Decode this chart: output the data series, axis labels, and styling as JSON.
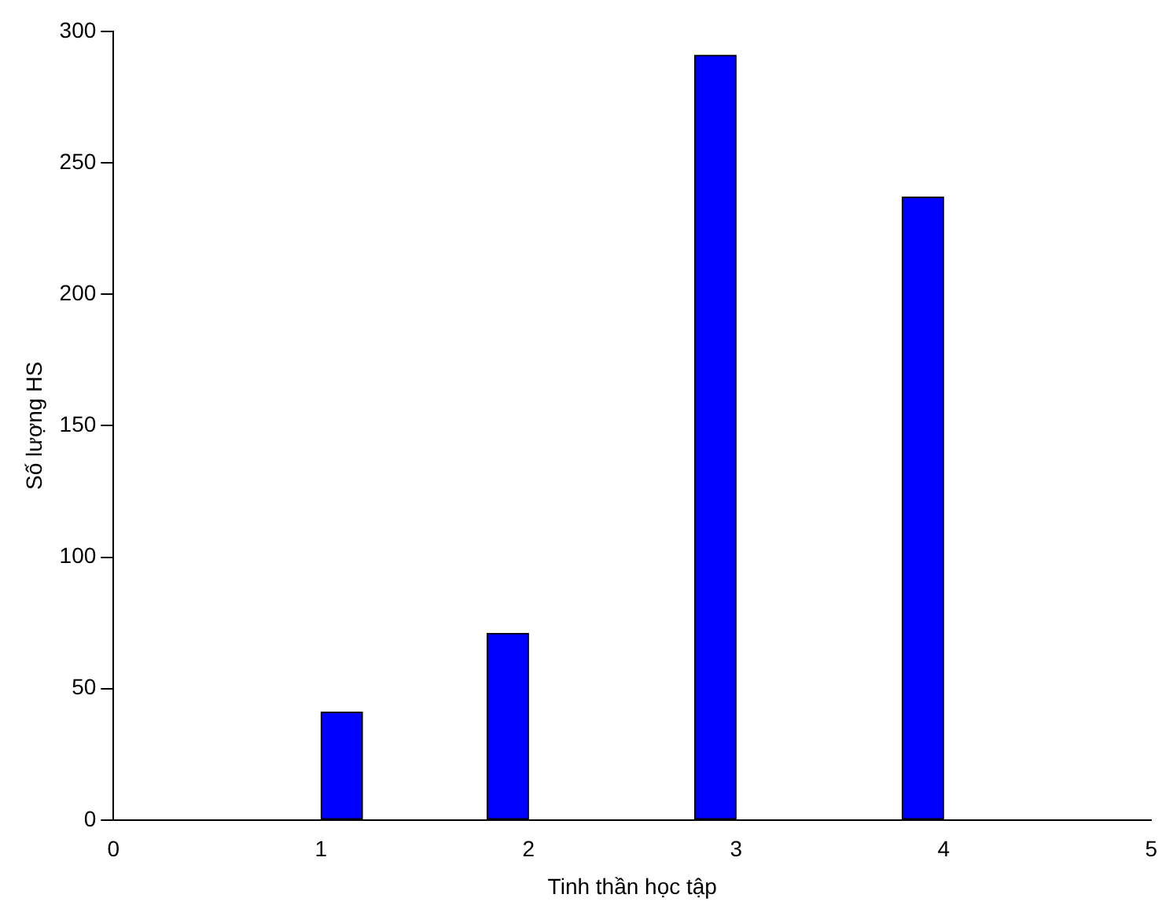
{
  "chart_data": {
    "type": "histogram",
    "xlabel": "Tinh thần học tập",
    "ylabel": "Số lượng HS",
    "bins": [
      1,
      1.2,
      1.4,
      1.6,
      1.8,
      2,
      2.2,
      2.4,
      2.6,
      2.8,
      3,
      3.2,
      3.4,
      3.6,
      3.8,
      4
    ],
    "values": [
      41,
      0,
      0,
      0,
      71,
      0,
      0,
      0,
      0,
      291,
      0,
      0,
      0,
      0,
      237
    ],
    "color": "#0000ff",
    "xlim": [
      0,
      5
    ],
    "xticks": [
      0,
      1,
      2,
      3,
      4,
      5
    ],
    "ylim": [
      0,
      300
    ],
    "yticks": [
      0,
      50,
      100,
      150,
      200,
      250,
      300
    ],
    "grid": false,
    "legend": false
  }
}
